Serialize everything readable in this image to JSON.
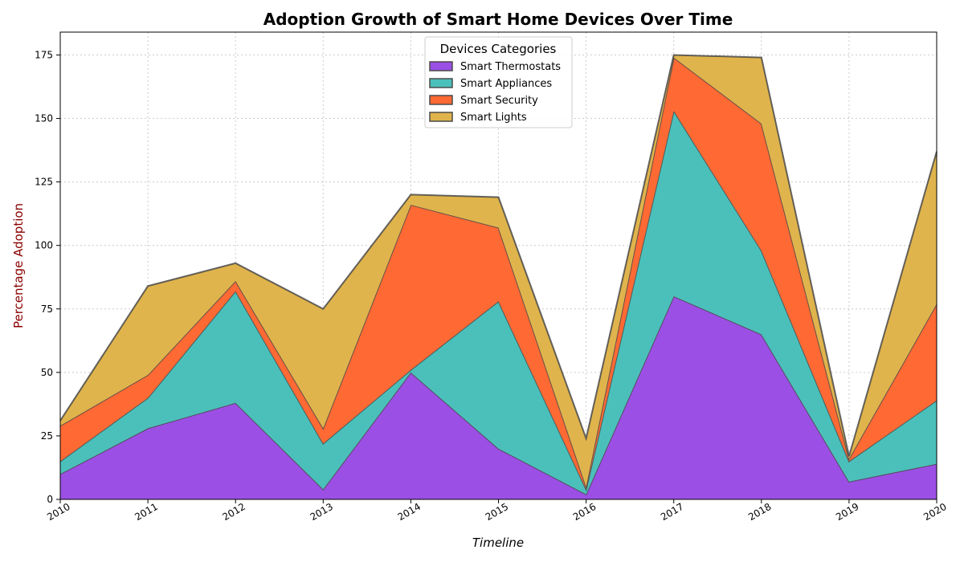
{
  "chart_data": {
    "type": "area",
    "stacked": true,
    "title": "Adoption Growth of Smart Home Devices Over Time",
    "xlabel": "Timeline",
    "ylabel": "Percentage Adoption",
    "x": [
      2010,
      2011,
      2012,
      2013,
      2014,
      2015,
      2016,
      2017,
      2018,
      2019,
      2020
    ],
    "xlim": [
      2010,
      2020
    ],
    "ylim": [
      0,
      184
    ],
    "y_ticks": [
      0,
      25,
      50,
      75,
      100,
      125,
      150,
      175
    ],
    "x_ticks": [
      "2010",
      "2011",
      "2012",
      "2013",
      "2014",
      "2015",
      "2016",
      "2017",
      "2018",
      "2019",
      "2020"
    ],
    "grid": true,
    "legend": {
      "title": "Devices Categories",
      "placement": "top-center"
    },
    "series": [
      {
        "name": "Smart Thermostats",
        "color": "#9b4fe4",
        "values": [
          10,
          28,
          38,
          4,
          50,
          20,
          2,
          80,
          65,
          7,
          14
        ]
      },
      {
        "name": "Smart Appliances",
        "color": "#4bc0bb",
        "values": [
          5,
          12,
          44,
          18,
          1,
          58,
          2,
          73,
          33,
          8,
          25
        ]
      },
      {
        "name": "Smart Security",
        "color": "#ff6933",
        "values": [
          14,
          9,
          4,
          6,
          65,
          29,
          1,
          21,
          50,
          1,
          38
        ]
      },
      {
        "name": "Smart Lights",
        "color": "#e0b44c",
        "values": [
          2,
          35,
          7,
          47,
          4,
          12,
          19,
          1,
          26,
          1,
          60
        ]
      }
    ]
  }
}
